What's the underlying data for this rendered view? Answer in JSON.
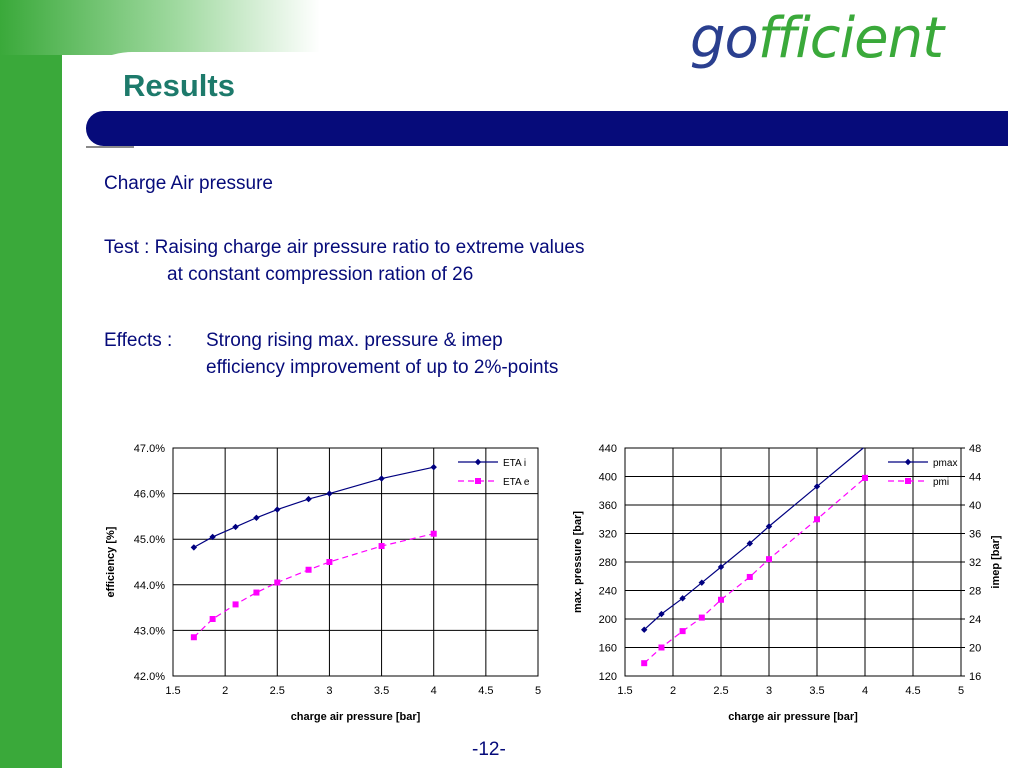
{
  "slide": {
    "title": "Results",
    "logo_part1": "go",
    "logo_part2": "fficient",
    "subtitle": "Charge Air pressure",
    "test_line1": "Test : Raising charge air pressure ratio to extreme values",
    "test_line2": "at constant compression ration of 26",
    "effects_label": "Effects :",
    "effects_line1": "Strong rising max. pressure & imep",
    "effects_line2": "efficiency improvement of up to 2%-points",
    "page_number": "-12-"
  },
  "colors": {
    "green": "#3aa93a",
    "navy": "#060b7a",
    "title_teal": "#1d7a6b",
    "series_blue": "#000080",
    "series_magenta": "#ff00ff"
  },
  "chart_data": [
    {
      "type": "line",
      "xlabel": "charge air pressure [bar]",
      "ylabel": "efficiency [%]",
      "xlim": [
        1.5,
        5
      ],
      "ylim": [
        42,
        47
      ],
      "xticks": [
        "1.5",
        "2",
        "2.5",
        "3",
        "3.5",
        "4",
        "4.5",
        "5"
      ],
      "yticks": [
        "42.0%",
        "43.0%",
        "44.0%",
        "45.0%",
        "46.0%",
        "47.0%"
      ],
      "grid": true,
      "legend": "top-right",
      "series": [
        {
          "name": "ETA i",
          "marker": "diamond",
          "dash": false,
          "color": "#000080",
          "x": [
            1.7,
            1.88,
            2.1,
            2.3,
            2.5,
            2.8,
            3.0,
            3.5,
            4.0
          ],
          "y": [
            44.82,
            45.05,
            45.27,
            45.47,
            45.65,
            45.88,
            46.0,
            46.33,
            46.58
          ]
        },
        {
          "name": "ETA e",
          "marker": "square",
          "dash": true,
          "color": "#ff00ff",
          "x": [
            1.7,
            1.88,
            2.1,
            2.3,
            2.5,
            2.8,
            3.0,
            3.5,
            4.0
          ],
          "y": [
            42.85,
            43.25,
            43.57,
            43.83,
            44.05,
            44.33,
            44.5,
            44.85,
            45.12
          ]
        }
      ]
    },
    {
      "type": "line",
      "xlabel": "charge air pressure [bar]",
      "ylabel": "max. pressure [bar]",
      "y2label": "imep [bar]",
      "xlim": [
        1.5,
        5
      ],
      "ylim": [
        120,
        440
      ],
      "y2lim": [
        16,
        48
      ],
      "xticks": [
        "1.5",
        "2",
        "2.5",
        "3",
        "3.5",
        "4",
        "4.5",
        "5"
      ],
      "yticks": [
        "120",
        "160",
        "200",
        "240",
        "280",
        "320",
        "360",
        "400",
        "440"
      ],
      "y2ticks": [
        "16",
        "20",
        "24",
        "28",
        "32",
        "36",
        "40",
        "44",
        "48"
      ],
      "grid": true,
      "legend": "top-right",
      "series": [
        {
          "name": "pmax",
          "axis": "left",
          "marker": "diamond",
          "dash": false,
          "color": "#000080",
          "x": [
            1.7,
            1.88,
            2.1,
            2.3,
            2.5,
            2.8,
            3.0,
            3.5,
            4.0
          ],
          "y": [
            185,
            207,
            229,
            251,
            273,
            306,
            330,
            386,
            442
          ]
        },
        {
          "name": "pmi",
          "axis": "right",
          "marker": "square",
          "dash": true,
          "color": "#ff00ff",
          "x": [
            1.7,
            1.88,
            2.1,
            2.3,
            2.5,
            2.8,
            3.0,
            3.5,
            4.0
          ],
          "y": [
            17.8,
            20.0,
            22.3,
            24.2,
            26.7,
            29.9,
            32.4,
            38.0,
            43.8
          ]
        }
      ]
    }
  ]
}
